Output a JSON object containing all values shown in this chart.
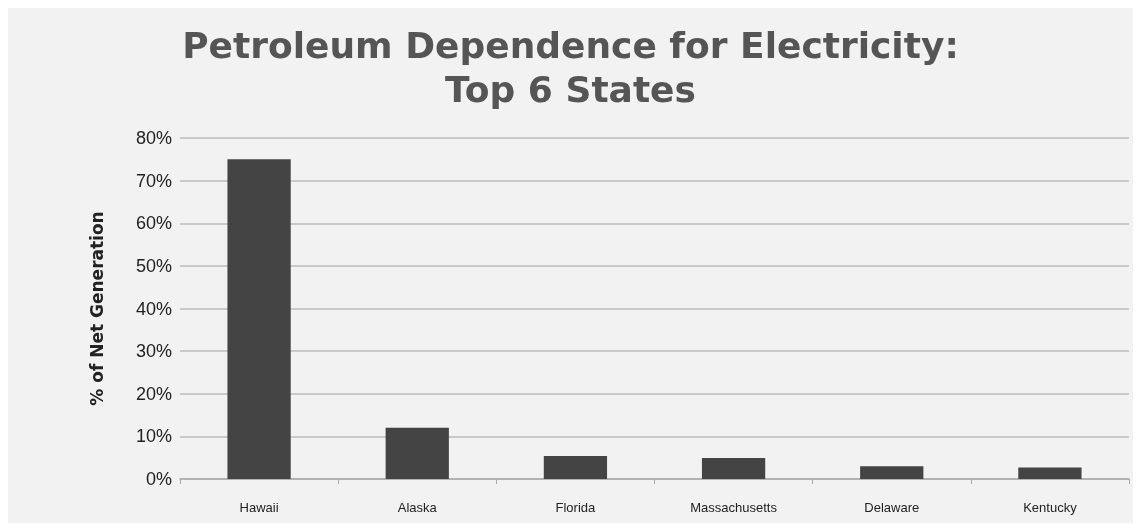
{
  "chart_data": {
    "type": "bar",
    "title": "Petroleum Dependence for Electricity:\nTop 6 States",
    "ylabel": "% of Net Generation",
    "categories": [
      "Hawaii",
      "Alaska",
      "Florida",
      "Massachusetts",
      "Delaware",
      "Kentucky"
    ],
    "values": [
      75,
      12,
      5.4,
      4.9,
      3.0,
      2.7
    ],
    "color": "#444444",
    "ylim": [
      0,
      80
    ],
    "yticks": [
      {
        "value": 0,
        "label": "0%"
      },
      {
        "value": 10,
        "label": "10%"
      },
      {
        "value": 20,
        "label": "20%"
      },
      {
        "value": 30,
        "label": "30%"
      },
      {
        "value": 40,
        "label": "40%"
      },
      {
        "value": 50,
        "label": "50%"
      },
      {
        "value": 60,
        "label": "60%"
      },
      {
        "value": 70,
        "label": "70%"
      },
      {
        "value": 80,
        "label": "80%"
      }
    ],
    "grid": "y"
  }
}
